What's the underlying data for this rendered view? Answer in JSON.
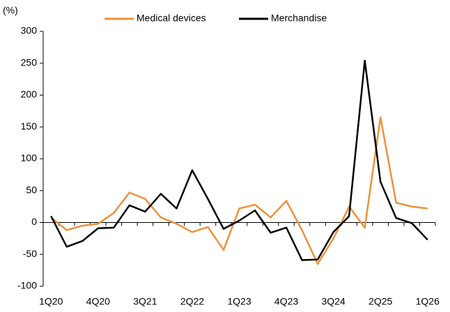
{
  "chart_data": {
    "type": "line",
    "y_axis_label": "(%)",
    "categories": [
      "1Q20",
      null,
      null,
      "4Q20",
      null,
      null,
      "3Q21",
      null,
      null,
      "2Q22",
      null,
      null,
      "1Q23",
      null,
      null,
      "4Q23",
      null,
      null,
      "3Q24",
      null,
      null,
      "2Q25",
      null,
      null,
      "1Q26"
    ],
    "series": [
      {
        "name": "Medical devices",
        "color": "#f0913a",
        "values": [
          8,
          -12,
          -5,
          -2,
          15,
          47,
          37,
          8,
          -2,
          -15,
          -7,
          -43,
          22,
          28,
          8,
          34,
          -12,
          -65,
          -25,
          25,
          -8,
          165,
          31,
          25,
          22
        ]
      },
      {
        "name": "Merchandise",
        "color": "#000000",
        "values": [
          10,
          -38,
          -29,
          -9,
          -8,
          27,
          17,
          45,
          22,
          82,
          37,
          -10,
          3,
          19,
          -16,
          -8,
          -59,
          -58,
          -15,
          10,
          254,
          64,
          7,
          -1,
          -27
        ]
      }
    ],
    "ylim": [
      -100,
      300
    ],
    "yticks": [
      -100,
      -50,
      0,
      50,
      100,
      150,
      200,
      250,
      300
    ],
    "grid": false,
    "legend": "top"
  }
}
